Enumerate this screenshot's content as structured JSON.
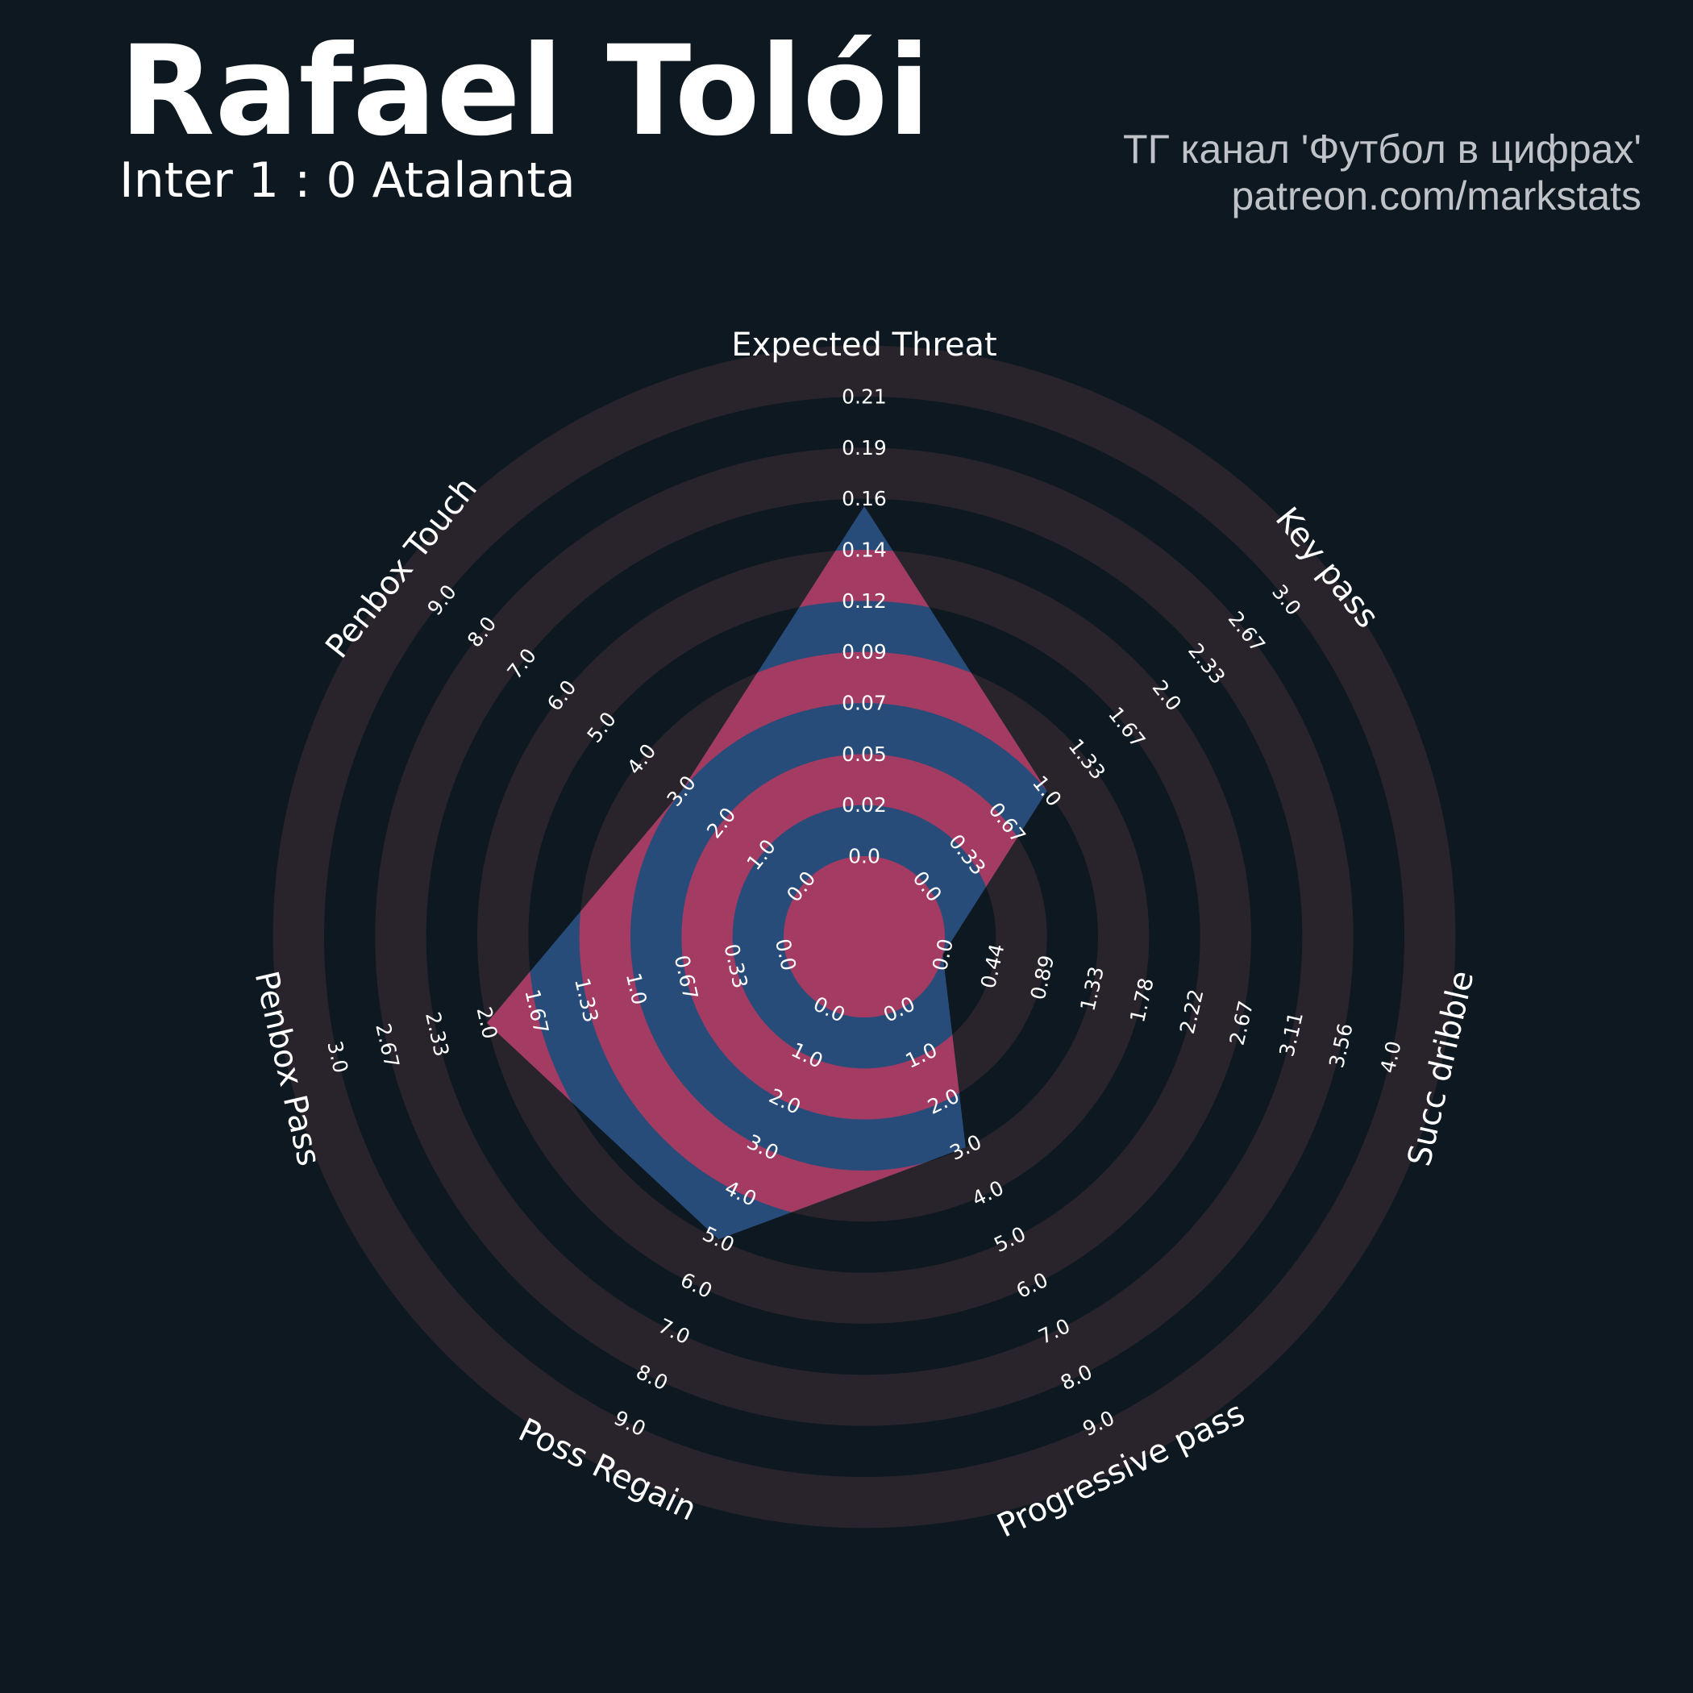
{
  "header": {
    "player_name": "Rafael Tolói",
    "match": "Inter 1 : 0 Atalanta",
    "credit_line1": "ТГ канал 'Футбол в цифрах'",
    "credit_line2": "patreon.com/markstats"
  },
  "colors": {
    "background": "#0e1820",
    "ring_band": "#29242c",
    "fill_primary": "#284c79",
    "fill_secondary": "#a33b62",
    "text": "#ffffff",
    "credit_text": "#bfc3c7"
  },
  "chart_data": {
    "type": "radar",
    "title": "Rafael Tolói",
    "subtitle": "Inter 1 : 0 Atalanta",
    "parameters": [
      {
        "name": "Expected Threat",
        "min": 0.0,
        "max": 0.21,
        "value": 0.16,
        "ticks": [
          "0.0",
          "0.02",
          "0.05",
          "0.07",
          "0.09",
          "0.12",
          "0.14",
          "0.16",
          "0.19",
          "0.21"
        ]
      },
      {
        "name": "Key pass",
        "min": 0.0,
        "max": 3.0,
        "value": 1.0,
        "ticks": [
          "0.0",
          "0.33",
          "0.67",
          "1.0",
          "1.33",
          "1.67",
          "2.0",
          "2.33",
          "2.67",
          "3.0"
        ]
      },
      {
        "name": "Succ dribble",
        "min": 0.0,
        "max": 4.0,
        "value": 0.0,
        "ticks": [
          "0.0",
          "0.44",
          "0.89",
          "1.33",
          "1.78",
          "2.22",
          "2.67",
          "3.11",
          "3.56",
          "4.0"
        ]
      },
      {
        "name": "Progressive pass",
        "min": 0.0,
        "max": 9.0,
        "value": 3.0,
        "ticks": [
          "0.0",
          "1.0",
          "2.0",
          "3.0",
          "4.0",
          "5.0",
          "6.0",
          "7.0",
          "8.0",
          "9.0"
        ]
      },
      {
        "name": "Poss Regain",
        "min": 0.0,
        "max": 9.0,
        "value": 5.0,
        "ticks": [
          "0.0",
          "1.0",
          "2.0",
          "3.0",
          "4.0",
          "5.0",
          "6.0",
          "7.0",
          "8.0",
          "9.0"
        ]
      },
      {
        "name": "Penbox Pass",
        "min": 0.0,
        "max": 3.0,
        "value": 2.0,
        "ticks": [
          "0.0",
          "0.33",
          "0.67",
          "1.0",
          "1.33",
          "1.67",
          "2.0",
          "2.33",
          "2.67",
          "3.0"
        ]
      },
      {
        "name": "Penbox Touch",
        "min": 0.0,
        "max": 9.0,
        "value": 3.0,
        "ticks": [
          "0.0",
          "1.0",
          "2.0",
          "3.0",
          "4.0",
          "5.0",
          "6.0",
          "7.0",
          "8.0",
          "9.0"
        ]
      }
    ],
    "grid": true,
    "legend": "none"
  }
}
